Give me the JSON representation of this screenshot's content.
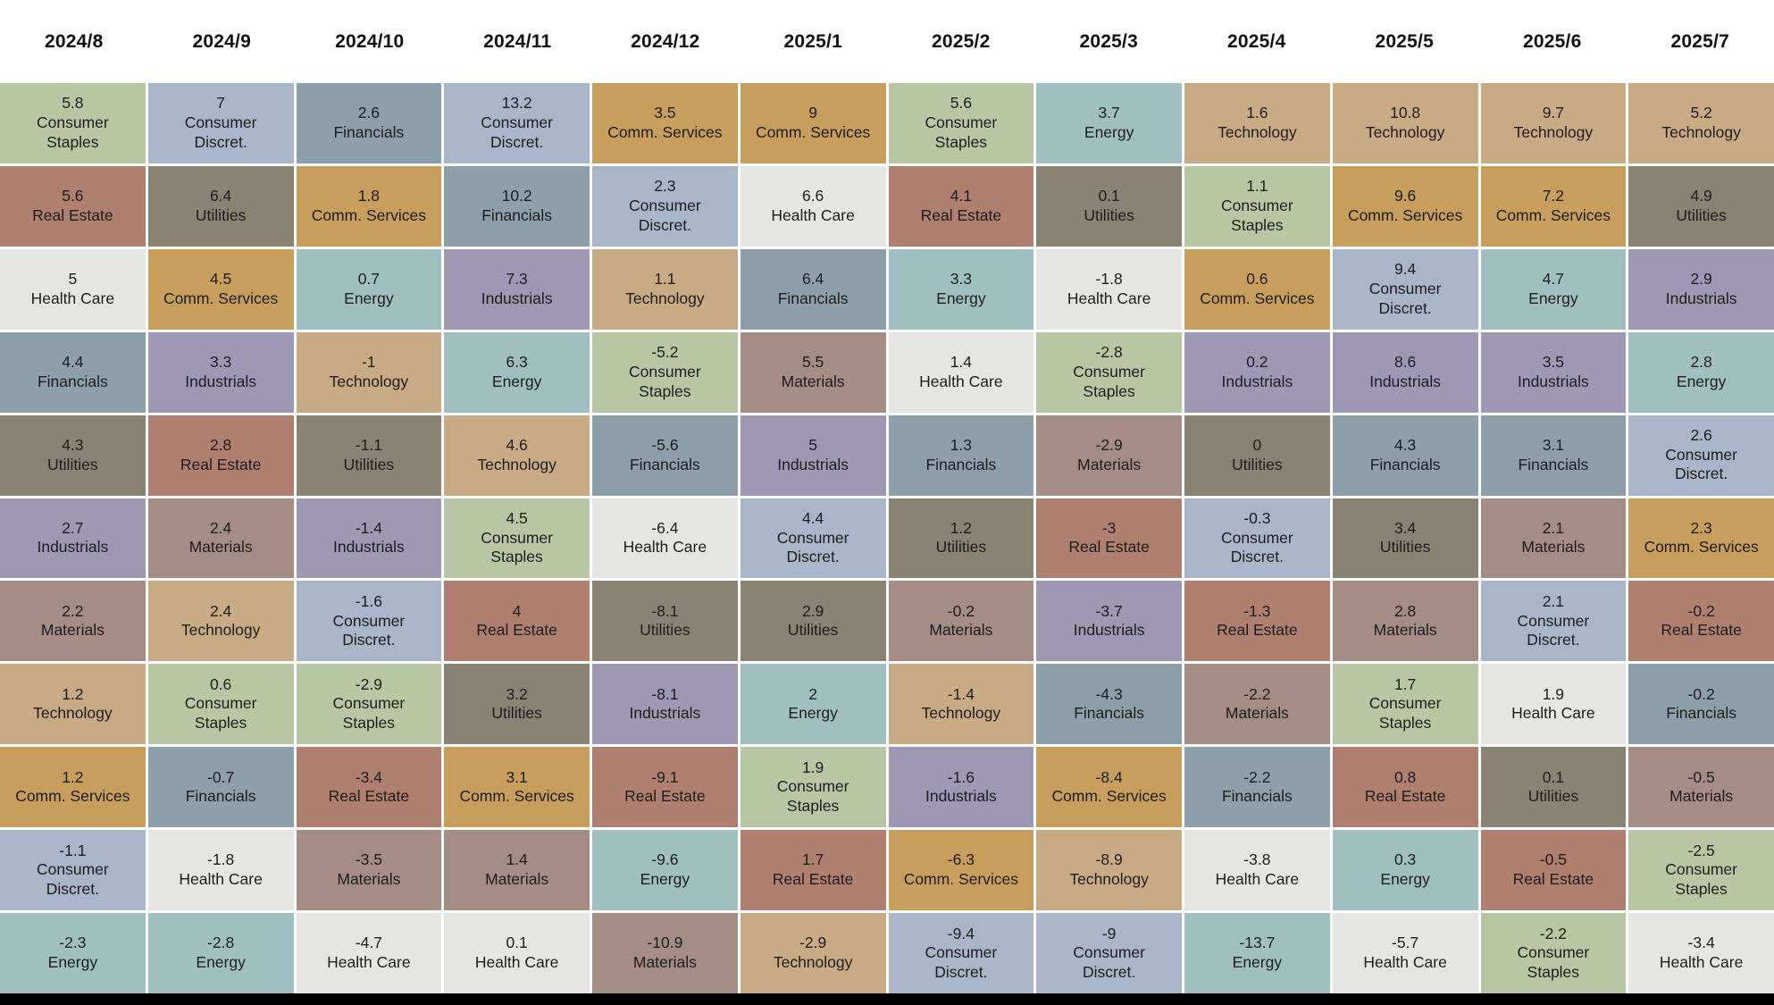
{
  "chart_data": {
    "type": "heatmap",
    "layout": {
      "columns": "months left-to-right",
      "rows": "sectors ranked by monthly return, descending top-to-bottom",
      "value_unit": "percent",
      "grid_gap_color": "#ffffff",
      "bottom_bar_color": "#000000",
      "legend": "none"
    },
    "months": [
      "2024/8",
      "2024/9",
      "2024/10",
      "2024/11",
      "2024/12",
      "2025/1",
      "2025/2",
      "2025/3",
      "2025/4",
      "2025/5",
      "2025/6",
      "2025/7"
    ],
    "sector_colors": {
      "Consumer Staples": "#b7c7a3",
      "Consumer Discret.": "#a9b6c9",
      "Financials": "#8c9fab",
      "Real Estate": "#af7f70",
      "Utilities": "#8a8273",
      "Comm. Services": "#c79e5c",
      "Health Care": "#e5e5e3",
      "Energy": "#a0bfc0",
      "Industrials": "#9e98b5",
      "Materials": "#a58c84",
      "Technology": "#c8ab85"
    },
    "rankings": [
      [
        {
          "value": 5.8,
          "sector": "Consumer Staples"
        },
        {
          "value": 5.6,
          "sector": "Real Estate"
        },
        {
          "value": 5,
          "sector": "Health Care"
        },
        {
          "value": 4.4,
          "sector": "Financials"
        },
        {
          "value": 4.3,
          "sector": "Utilities"
        },
        {
          "value": 2.7,
          "sector": "Industrials"
        },
        {
          "value": 2.2,
          "sector": "Materials"
        },
        {
          "value": 1.2,
          "sector": "Technology"
        },
        {
          "value": 1.2,
          "sector": "Comm. Services"
        },
        {
          "value": -1.1,
          "sector": "Consumer Discret."
        },
        {
          "value": -2.3,
          "sector": "Energy"
        }
      ],
      [
        {
          "value": 7,
          "sector": "Consumer Discret."
        },
        {
          "value": 6.4,
          "sector": "Utilities"
        },
        {
          "value": 4.5,
          "sector": "Comm. Services"
        },
        {
          "value": 3.3,
          "sector": "Industrials"
        },
        {
          "value": 2.8,
          "sector": "Real Estate"
        },
        {
          "value": 2.4,
          "sector": "Materials"
        },
        {
          "value": 2.4,
          "sector": "Technology"
        },
        {
          "value": 0.6,
          "sector": "Consumer Staples"
        },
        {
          "value": -0.7,
          "sector": "Financials"
        },
        {
          "value": -1.8,
          "sector": "Health Care"
        },
        {
          "value": -2.8,
          "sector": "Energy"
        }
      ],
      [
        {
          "value": 2.6,
          "sector": "Financials"
        },
        {
          "value": 1.8,
          "sector": "Comm. Services"
        },
        {
          "value": 0.7,
          "sector": "Energy"
        },
        {
          "value": -1,
          "sector": "Technology"
        },
        {
          "value": -1.1,
          "sector": "Utilities"
        },
        {
          "value": -1.4,
          "sector": "Industrials"
        },
        {
          "value": -1.6,
          "sector": "Consumer Discret."
        },
        {
          "value": -2.9,
          "sector": "Consumer Staples"
        },
        {
          "value": -3.4,
          "sector": "Real Estate"
        },
        {
          "value": -3.5,
          "sector": "Materials"
        },
        {
          "value": -4.7,
          "sector": "Health Care"
        }
      ],
      [
        {
          "value": 13.2,
          "sector": "Consumer Discret."
        },
        {
          "value": 10.2,
          "sector": "Financials"
        },
        {
          "value": 7.3,
          "sector": "Industrials"
        },
        {
          "value": 6.3,
          "sector": "Energy"
        },
        {
          "value": 4.6,
          "sector": "Technology"
        },
        {
          "value": 4.5,
          "sector": "Consumer Staples"
        },
        {
          "value": 4,
          "sector": "Real Estate"
        },
        {
          "value": 3.2,
          "sector": "Utilities"
        },
        {
          "value": 3.1,
          "sector": "Comm. Services"
        },
        {
          "value": 1.4,
          "sector": "Materials"
        },
        {
          "value": 0.1,
          "sector": "Health Care"
        }
      ],
      [
        {
          "value": 3.5,
          "sector": "Comm. Services"
        },
        {
          "value": 2.3,
          "sector": "Consumer Discret."
        },
        {
          "value": 1.1,
          "sector": "Technology"
        },
        {
          "value": -5.2,
          "sector": "Consumer Staples"
        },
        {
          "value": -5.6,
          "sector": "Financials"
        },
        {
          "value": -6.4,
          "sector": "Health Care"
        },
        {
          "value": -8.1,
          "sector": "Utilities"
        },
        {
          "value": -8.1,
          "sector": "Industrials"
        },
        {
          "value": -9.1,
          "sector": "Real Estate"
        },
        {
          "value": -9.6,
          "sector": "Energy"
        },
        {
          "value": -10.9,
          "sector": "Materials"
        }
      ],
      [
        {
          "value": 9,
          "sector": "Comm. Services"
        },
        {
          "value": 6.6,
          "sector": "Health Care"
        },
        {
          "value": 6.4,
          "sector": "Financials"
        },
        {
          "value": 5.5,
          "sector": "Materials"
        },
        {
          "value": 5,
          "sector": "Industrials"
        },
        {
          "value": 4.4,
          "sector": "Consumer Discret."
        },
        {
          "value": 2.9,
          "sector": "Utilities"
        },
        {
          "value": 2,
          "sector": "Energy"
        },
        {
          "value": 1.9,
          "sector": "Consumer Staples"
        },
        {
          "value": 1.7,
          "sector": "Real Estate"
        },
        {
          "value": -2.9,
          "sector": "Technology"
        }
      ],
      [
        {
          "value": 5.6,
          "sector": "Consumer Staples"
        },
        {
          "value": 4.1,
          "sector": "Real Estate"
        },
        {
          "value": 3.3,
          "sector": "Energy"
        },
        {
          "value": 1.4,
          "sector": "Health Care"
        },
        {
          "value": 1.3,
          "sector": "Financials"
        },
        {
          "value": 1.2,
          "sector": "Utilities"
        },
        {
          "value": -0.2,
          "sector": "Materials"
        },
        {
          "value": -1.4,
          "sector": "Technology"
        },
        {
          "value": -1.6,
          "sector": "Industrials"
        },
        {
          "value": -6.3,
          "sector": "Comm. Services"
        },
        {
          "value": -9.4,
          "sector": "Consumer Discret."
        }
      ],
      [
        {
          "value": 3.7,
          "sector": "Energy"
        },
        {
          "value": 0.1,
          "sector": "Utilities"
        },
        {
          "value": -1.8,
          "sector": "Health Care"
        },
        {
          "value": -2.8,
          "sector": "Consumer Staples"
        },
        {
          "value": -2.9,
          "sector": "Materials"
        },
        {
          "value": -3,
          "sector": "Real Estate"
        },
        {
          "value": -3.7,
          "sector": "Industrials"
        },
        {
          "value": -4.3,
          "sector": "Financials"
        },
        {
          "value": -8.4,
          "sector": "Comm. Services"
        },
        {
          "value": -8.9,
          "sector": "Technology"
        },
        {
          "value": -9,
          "sector": "Consumer Discret."
        }
      ],
      [
        {
          "value": 1.6,
          "sector": "Technology"
        },
        {
          "value": 1.1,
          "sector": "Consumer Staples"
        },
        {
          "value": 0.6,
          "sector": "Comm. Services"
        },
        {
          "value": 0.2,
          "sector": "Industrials"
        },
        {
          "value": 0,
          "sector": "Utilities"
        },
        {
          "value": -0.3,
          "sector": "Consumer Discret."
        },
        {
          "value": -1.3,
          "sector": "Real Estate"
        },
        {
          "value": -2.2,
          "sector": "Materials"
        },
        {
          "value": -2.2,
          "sector": "Financials"
        },
        {
          "value": -3.8,
          "sector": "Health Care"
        },
        {
          "value": -13.7,
          "sector": "Energy"
        }
      ],
      [
        {
          "value": 10.8,
          "sector": "Technology"
        },
        {
          "value": 9.6,
          "sector": "Comm. Services"
        },
        {
          "value": 9.4,
          "sector": "Consumer Discret."
        },
        {
          "value": 8.6,
          "sector": "Industrials"
        },
        {
          "value": 4.3,
          "sector": "Financials"
        },
        {
          "value": 3.4,
          "sector": "Utilities"
        },
        {
          "value": 2.8,
          "sector": "Materials"
        },
        {
          "value": 1.7,
          "sector": "Consumer Staples"
        },
        {
          "value": 0.8,
          "sector": "Real Estate"
        },
        {
          "value": 0.3,
          "sector": "Energy"
        },
        {
          "value": -5.7,
          "sector": "Health Care"
        }
      ],
      [
        {
          "value": 9.7,
          "sector": "Technology"
        },
        {
          "value": 7.2,
          "sector": "Comm. Services"
        },
        {
          "value": 4.7,
          "sector": "Energy"
        },
        {
          "value": 3.5,
          "sector": "Industrials"
        },
        {
          "value": 3.1,
          "sector": "Financials"
        },
        {
          "value": 2.1,
          "sector": "Materials"
        },
        {
          "value": 2.1,
          "sector": "Consumer Discret."
        },
        {
          "value": 1.9,
          "sector": "Health Care"
        },
        {
          "value": 0.1,
          "sector": "Utilities"
        },
        {
          "value": -0.5,
          "sector": "Real Estate"
        },
        {
          "value": -2.2,
          "sector": "Consumer Staples"
        }
      ],
      [
        {
          "value": 5.2,
          "sector": "Technology"
        },
        {
          "value": 4.9,
          "sector": "Utilities"
        },
        {
          "value": 2.9,
          "sector": "Industrials"
        },
        {
          "value": 2.8,
          "sector": "Energy"
        },
        {
          "value": 2.6,
          "sector": "Consumer Discret."
        },
        {
          "value": 2.3,
          "sector": "Comm. Services"
        },
        {
          "value": -0.2,
          "sector": "Real Estate"
        },
        {
          "value": -0.2,
          "sector": "Financials"
        },
        {
          "value": -0.5,
          "sector": "Materials"
        },
        {
          "value": -2.5,
          "sector": "Consumer Staples"
        },
        {
          "value": -3.4,
          "sector": "Health Care"
        }
      ]
    ]
  }
}
